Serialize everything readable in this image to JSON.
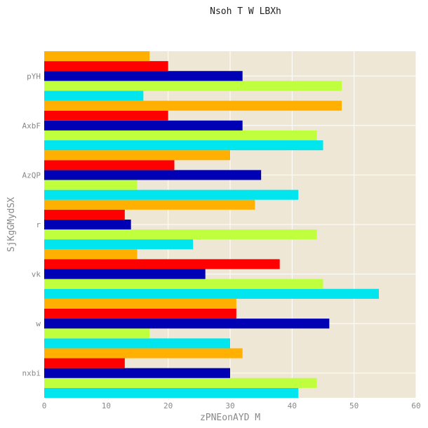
{
  "chart_data": {
    "type": "bar",
    "orientation": "horizontal",
    "title": "Nsoh T W LBXh",
    "xlabel": "zPNEonAYD M",
    "ylabel": "SjKgGMydSX",
    "xlim": [
      0,
      60
    ],
    "xticks": [
      0,
      10,
      20,
      30,
      40,
      50,
      60
    ],
    "grid": true,
    "categories": [
      "nxbi",
      "w",
      "vk",
      "r",
      "AzQP",
      "AxbF",
      "pYH"
    ],
    "series": [
      {
        "color": "#00e5ee",
        "values": [
          41,
          30,
          54,
          24,
          41,
          45,
          16
        ]
      },
      {
        "color": "#c0ff3e",
        "values": [
          44,
          17,
          45,
          44,
          15,
          44,
          48
        ]
      },
      {
        "color": "#0000b4",
        "values": [
          30,
          46,
          26,
          14,
          35,
          32,
          32
        ]
      },
      {
        "color": "#ff0000",
        "values": [
          13,
          31,
          38,
          13,
          21,
          20,
          20
        ]
      },
      {
        "color": "#ffb000",
        "values": [
          32,
          31,
          15,
          34,
          30,
          48,
          17
        ]
      }
    ],
    "style": {
      "plot_background": "#efe7d5",
      "grid_color": "#ffffff",
      "text_color": "#888888",
      "title_color": "#222222"
    }
  }
}
